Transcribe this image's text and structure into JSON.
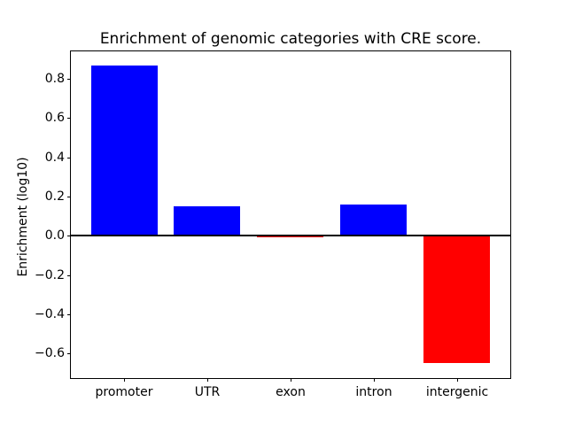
{
  "chart_data": {
    "type": "bar",
    "title": "Enrichment of genomic categories with CRE score.",
    "xlabel": "",
    "ylabel": "Enrichment (log10)",
    "categories": [
      "promoter",
      "UTR",
      "exon",
      "intron",
      "intergenic"
    ],
    "values": [
      0.87,
      0.15,
      -0.01,
      0.16,
      -0.65
    ],
    "bar_colors": [
      "#0000ff",
      "#0000ff",
      "#ff0000",
      "#0000ff",
      "#ff0000"
    ],
    "positive_color": "#0000ff",
    "negative_color": "#ff0000",
    "bar_width": 0.8,
    "ylim": [
      -0.726,
      0.941
    ],
    "xlim": [
      -0.64,
      4.64
    ],
    "yticks": [
      0.8,
      0.6,
      0.4,
      0.2,
      0.0,
      -0.2,
      -0.4,
      -0.6
    ],
    "ytick_labels": [
      "0.8",
      "0.6",
      "0.4",
      "0.2",
      "0.0",
      "−0.2",
      "−0.4",
      "−0.6"
    ],
    "zero_line": true,
    "grid": false,
    "legend": false,
    "background_color": "#ffffff",
    "axis_color": "#000000"
  }
}
